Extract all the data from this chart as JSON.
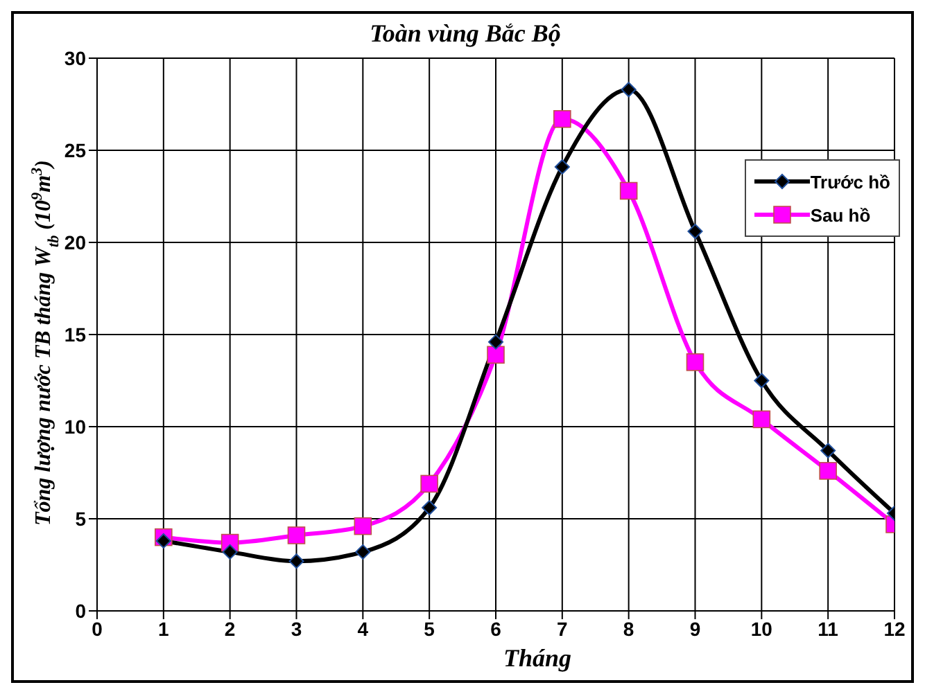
{
  "chart_data": {
    "type": "line",
    "title": "Toàn vùng Bắc Bộ",
    "xlabel": "Tháng",
    "ylabel": "Tổng lượng nước TB tháng W$_{tb}$ (10$^{9}$m$^{3}$)",
    "x": [
      1,
      2,
      3,
      4,
      5,
      6,
      7,
      8,
      9,
      10,
      11,
      12
    ],
    "series": [
      {
        "name": "Trước hồ",
        "color": "#000000",
        "marker": "diamond",
        "values": [
          3.8,
          3.2,
          2.7,
          3.2,
          5.6,
          14.6,
          24.1,
          28.3,
          20.6,
          12.5,
          8.7,
          5.3
        ]
      },
      {
        "name": "Sau hồ",
        "color": "#ff00ff",
        "marker": "square",
        "values": [
          4.0,
          3.7,
          4.1,
          4.6,
          6.9,
          13.9,
          26.7,
          22.8,
          13.5,
          10.4,
          7.6,
          4.7
        ]
      }
    ],
    "xlim": [
      0,
      12
    ],
    "xticks": [
      0,
      1,
      2,
      3,
      4,
      5,
      6,
      7,
      8,
      9,
      10,
      11,
      12
    ],
    "ylim": [
      0,
      30
    ],
    "yticks": [
      0,
      5,
      10,
      15,
      20,
      25,
      30
    ],
    "grid": true,
    "legend": "top right",
    "line_style": "solid"
  }
}
